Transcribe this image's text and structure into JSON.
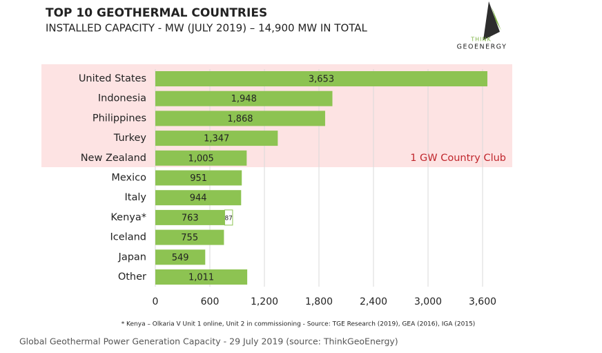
{
  "title": "TOP 10 GEOTHERMAL COUNTRIES",
  "subtitle": "INSTALLED CAPACITY - MW (JULY 2019) – 14,900 MW IN TOTAL",
  "logo": {
    "line1": "THINK",
    "line2": "GEOENERGY"
  },
  "chart_data": {
    "type": "stacked-bar-horizontal",
    "categories": [
      "United States",
      "Indonesia",
      "Philippines",
      "Turkey",
      "New Zealand",
      "Mexico",
      "Italy",
      "Kenya*",
      "Iceland",
      "Japan",
      "Other"
    ],
    "series": [
      {
        "color": "#8dc352",
        "values": [
          3653,
          1948,
          1868,
          1347,
          1005,
          951,
          944,
          763,
          755,
          549,
          1011
        ],
        "value_labels": [
          "3,653",
          "1,948",
          "1,868",
          "1,347",
          "1,005",
          "951",
          "944",
          "763",
          "755",
          "549",
          "1,011"
        ]
      },
      {
        "color": "#ffffff",
        "values": [
          null,
          null,
          null,
          null,
          null,
          null,
          null,
          87,
          null,
          null,
          null
        ]
      }
    ],
    "xlim": [
      0,
      3600
    ],
    "xticks": [
      0,
      600,
      {
        "value": 1200,
        "label": "1,200"
      },
      {
        "value": 1800,
        "label": "1,800"
      },
      {
        "value": 2400,
        "label": "2,400"
      },
      {
        "value": 3000,
        "label": "3,000"
      },
      {
        "value": 3600,
        "label": "3,600"
      }
    ],
    "grid": true,
    "annotation": "1 GW Country Club",
    "footnote": "* Kenya – Olkaria V Unit 1 online, Unit 2 in commissioning -  Source: TGE Research (2019), GEA (2016), IGA (2015)"
  },
  "caption": "Global Geothermal Power Generation Capacity - 29 July 2019 (source: ThinkGeoEnergy)"
}
